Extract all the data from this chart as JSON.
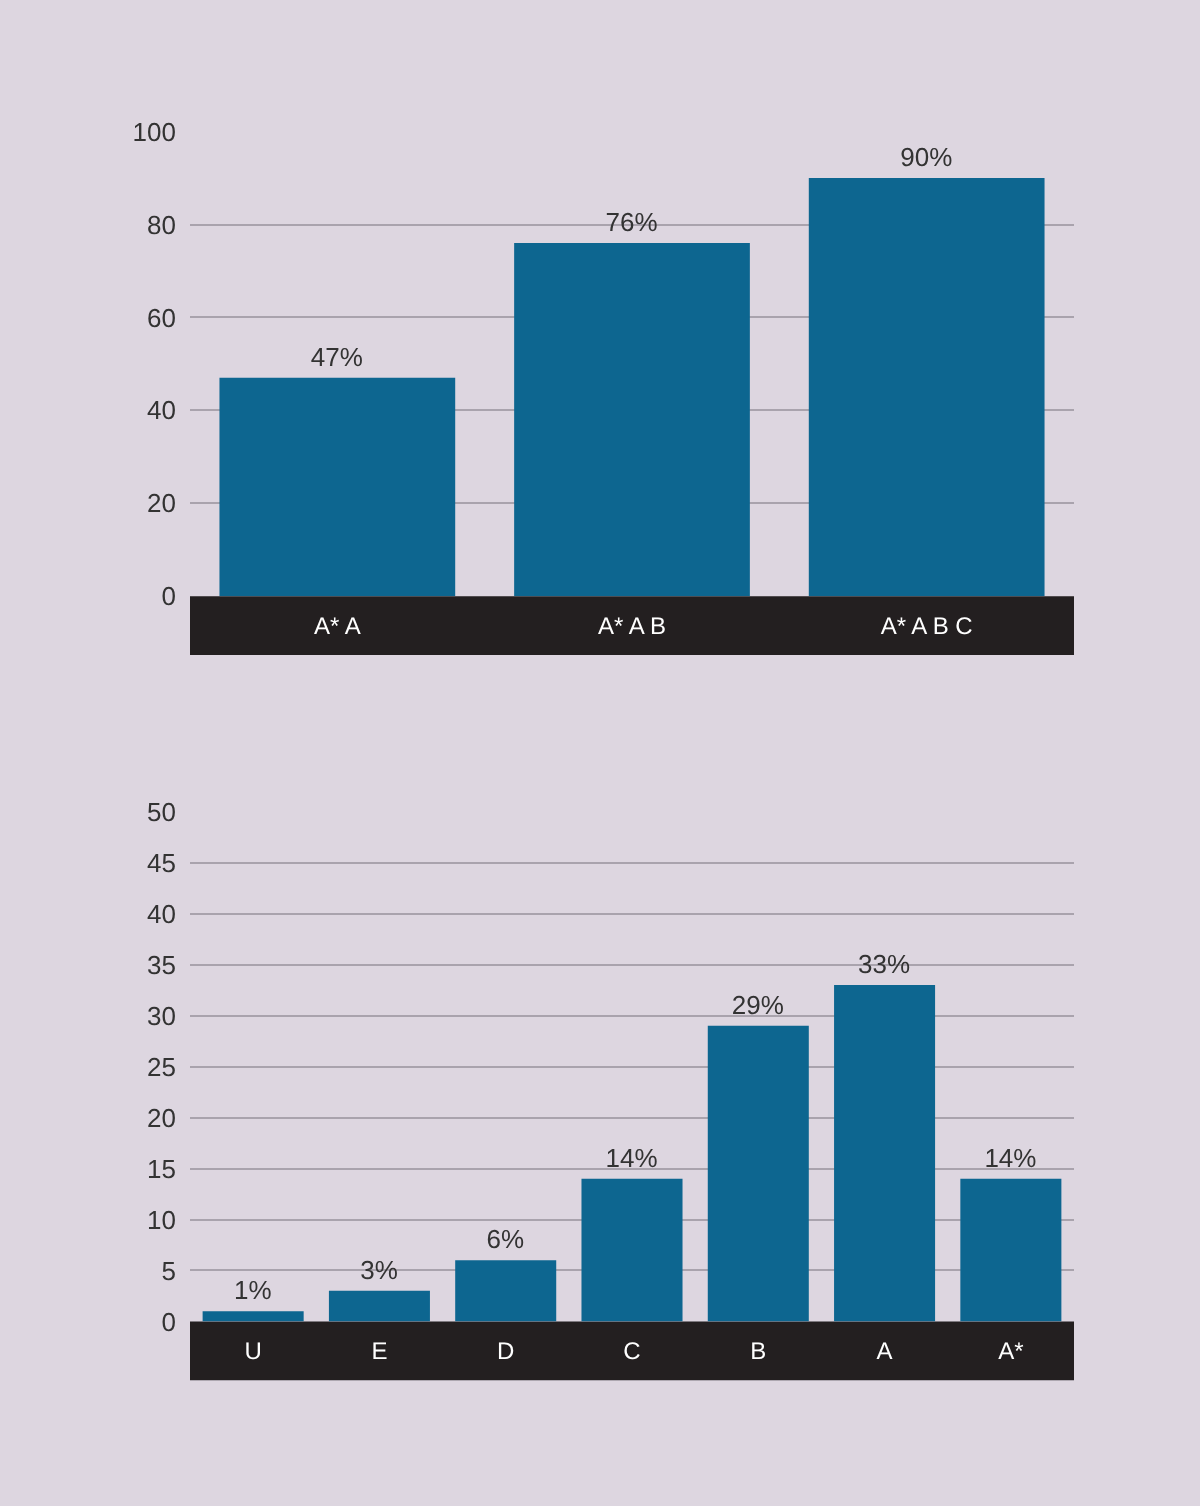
{
  "chart_data": [
    {
      "type": "bar",
      "categories": [
        "A* A",
        "A* A B",
        "A* A B C"
      ],
      "values": [
        47,
        76,
        90
      ],
      "value_labels": [
        "47%",
        "76%",
        "90%"
      ],
      "color": "#0d6690",
      "ylim": [
        0,
        100
      ],
      "yticks": [
        0,
        20,
        40,
        60,
        80,
        100
      ],
      "grid": "y",
      "legend": false
    },
    {
      "type": "bar",
      "categories": [
        "U",
        "E",
        "D",
        "C",
        "B",
        "A",
        "A*"
      ],
      "values": [
        1,
        3,
        6,
        14,
        29,
        33,
        14
      ],
      "value_labels": [
        "1%",
        "3%",
        "6%",
        "14%",
        "29%",
        "33%",
        "14%"
      ],
      "color": "#0d6690",
      "ylim": [
        0,
        50
      ],
      "yticks": [
        0,
        5,
        10,
        15,
        20,
        25,
        30,
        35,
        40,
        45,
        50
      ],
      "grid": "y",
      "legend": false
    }
  ]
}
